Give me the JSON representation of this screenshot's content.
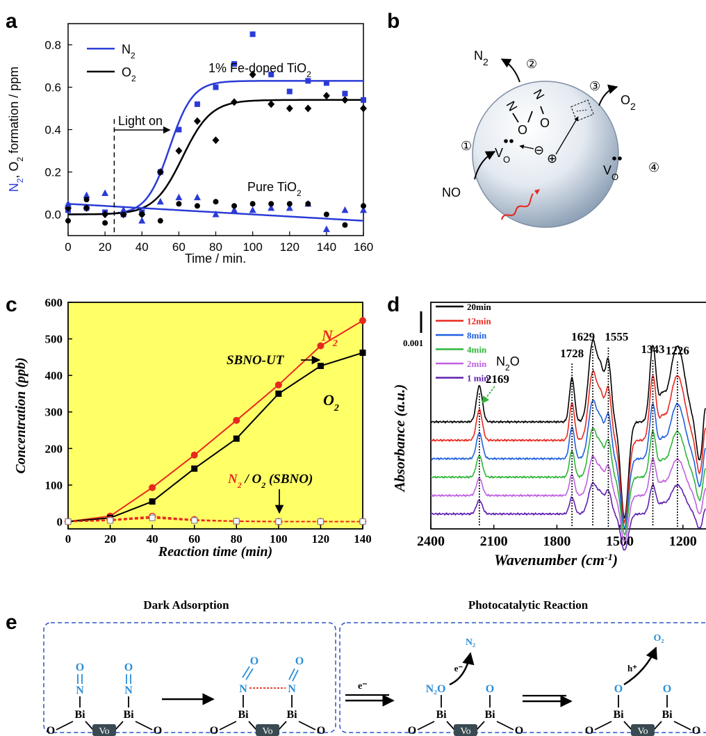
{
  "panels": {
    "a": {
      "label": "a"
    },
    "b": {
      "label": "b",
      "species": {
        "n2": "N",
        "n2_sub": "2",
        "o2": "O",
        "o2_sub": "2",
        "no": "NO",
        "n": "N",
        "o": "O",
        "vo": "V",
        "vo_sub": "O"
      },
      "steps": [
        "①",
        "②",
        "③",
        "④"
      ],
      "charges": {
        "minus": "⊖",
        "plus": "⊕"
      }
    },
    "c": {
      "label": "c"
    },
    "d": {
      "label": "d",
      "scale_bar": "0.001"
    },
    "e": {
      "label": "e",
      "titles": {
        "left": "Dark Adsorption",
        "right": "Photocatalytic Reaction"
      },
      "atoms": {
        "bi": "Bi",
        "o": "O",
        "n": "N",
        "vo": "Vo",
        "n2o": "N₂O",
        "n2": "N₂",
        "o2": "O₂",
        "e": "e⁻",
        "h": "h⁺"
      }
    }
  },
  "chart_data": [
    {
      "panel": "a",
      "type": "scatter",
      "xlabel": "Time / min.",
      "ylabel_parts": [
        "N",
        "2",
        ", O",
        "2",
        " formation / ppm"
      ],
      "xlim": [
        0,
        160
      ],
      "ylim": [
        -0.1,
        0.9
      ],
      "xticks": [
        0,
        20,
        40,
        60,
        80,
        100,
        120,
        140,
        160
      ],
      "yticks": [
        0.0,
        0.2,
        0.4,
        0.6,
        0.8
      ],
      "legend": {
        "placement": "top-left",
        "entries": [
          {
            "text": "N",
            "sub": "2",
            "color": "#2b3bd6"
          },
          {
            "text": "O",
            "sub": "2",
            "color": "#000000"
          }
        ]
      },
      "annotations": {
        "fe_label": "1% Fe-doped TiO",
        "fe_sub": "2",
        "pure_label": "Pure TiO",
        "pure_sub": "2",
        "light_on": "Light on",
        "light_on_x": 25
      },
      "fits": [
        {
          "series": "N2",
          "color": "#2b3bd6",
          "type": "sigmoid",
          "max": 0.63,
          "x0": 55,
          "k": 0.16
        },
        {
          "series": "O2",
          "color": "#000000",
          "type": "sigmoid",
          "max": 0.54,
          "x0": 62,
          "k": 0.13
        },
        {
          "series": "Pure TiO2",
          "color": "#2b3bd6",
          "type": "line",
          "start": 0.05,
          "end": -0.03
        }
      ],
      "series": [
        {
          "name": "Fe-TiO2 N2",
          "marker": "square",
          "color": "#2b3bd6",
          "x": [
            0,
            10,
            20,
            30,
            40,
            50,
            60,
            70,
            80,
            90,
            100,
            110,
            120,
            130,
            140,
            150,
            160
          ],
          "y": [
            0.02,
            0.03,
            0.01,
            0.0,
            0.01,
            0.2,
            0.4,
            0.52,
            0.6,
            0.71,
            0.85,
            0.66,
            0.58,
            0.63,
            0.62,
            0.57,
            0.54
          ]
        },
        {
          "name": "Fe-TiO2 O2",
          "marker": "diamond",
          "color": "#000000",
          "x": [
            0,
            10,
            20,
            30,
            40,
            50,
            60,
            70,
            80,
            90,
            100,
            110,
            120,
            130,
            140,
            150,
            160
          ],
          "y": [
            0.03,
            0.03,
            0.0,
            0.0,
            0.0,
            0.2,
            0.3,
            0.44,
            0.35,
            0.53,
            0.66,
            0.52,
            0.5,
            0.5,
            0.56,
            0.54,
            0.5
          ]
        },
        {
          "name": "Pure TiO2 N2",
          "marker": "triangle",
          "color": "#2b3bd6",
          "x": [
            0,
            10,
            20,
            30,
            40,
            50,
            60,
            70,
            80,
            90,
            100,
            110,
            120,
            130,
            140,
            150,
            160
          ],
          "y": [
            0.05,
            0.09,
            0.1,
            0.02,
            -0.03,
            0.06,
            0.08,
            0.08,
            0.0,
            0.02,
            0.02,
            0.03,
            0.03,
            0.05,
            -0.07,
            0.02,
            0.02
          ]
        },
        {
          "name": "Pure TiO2 O2",
          "marker": "circle",
          "color": "#000000",
          "x": [
            0,
            10,
            20,
            30,
            40,
            50,
            60,
            70,
            80,
            90,
            100,
            110,
            120,
            130,
            140,
            150,
            160
          ],
          "y": [
            -0.03,
            0.07,
            -0.04,
            0.0,
            0.0,
            -0.03,
            0.05,
            0.04,
            0.06,
            0.04,
            0.05,
            0.05,
            0.05,
            0.05,
            0.0,
            -0.05,
            0.04
          ]
        }
      ]
    },
    {
      "panel": "c",
      "type": "line",
      "background": "#ffff66",
      "xlabel": "Reaction time (min)",
      "ylabel": "Concentration (ppb)",
      "xlim": [
        0,
        140
      ],
      "ylim": [
        -20,
        600
      ],
      "xticks": [
        0,
        20,
        40,
        60,
        80,
        100,
        120,
        140
      ],
      "yticks": [
        0,
        100,
        200,
        300,
        400,
        500,
        600
      ],
      "x": [
        0,
        20,
        40,
        60,
        80,
        100,
        120,
        140
      ],
      "labels": {
        "n2": "N",
        "o2": "O",
        "sub": "2",
        "sbno_ut": "SBNO-UT",
        "sbno_mid": " / O",
        "sbno_tail": " (SBNO)"
      },
      "series": [
        {
          "name": "N2",
          "color": "#e8281e",
          "marker": "circle",
          "values": [
            0,
            15,
            93,
            182,
            277,
            374,
            481,
            550
          ]
        },
        {
          "name": "O2",
          "color": "#000000",
          "marker": "square",
          "values": [
            0,
            10,
            55,
            145,
            227,
            350,
            426,
            462
          ]
        },
        {
          "name": "N2 SBNO",
          "color": "#e8281e",
          "marker": "open-circle",
          "dashed": true,
          "values": [
            0,
            5,
            14,
            5,
            1,
            0,
            0,
            0
          ]
        },
        {
          "name": "O2 SBNO",
          "color": "#e8281e",
          "marker": "open-square",
          "dashed": true,
          "values": [
            0,
            3,
            10,
            3,
            1,
            0,
            0,
            0
          ]
        }
      ]
    },
    {
      "panel": "d",
      "type": "line",
      "xlabel": "Wavenumber (cm",
      "xlabel_sup": "-1",
      "xlabel_close": ")",
      "ylabel": "Absorbance (a.u.)",
      "xlim": [
        2400,
        1090
      ],
      "xticks": [
        2400,
        2100,
        1800,
        1500,
        1200
      ],
      "peaks": [
        2169,
        1728,
        1629,
        1555,
        1343,
        1226
      ],
      "peak_labels": [
        "2169",
        "1728",
        "1629",
        "1555",
        "1343",
        "1226"
      ],
      "n2o_label": "N",
      "n2o_sub": "2",
      "n2o_tail": "O",
      "legend": {
        "placement": "top-left"
      },
      "series": [
        {
          "name": "20min",
          "color": "#000000",
          "baseline": 0,
          "amp": 1.0
        },
        {
          "name": "12min",
          "color": "#e8281e",
          "baseline": 1,
          "amp": 0.85
        },
        {
          "name": "8min",
          "color": "#2060e0",
          "baseline": 2,
          "amp": 0.72
        },
        {
          "name": "4min",
          "color": "#2fb53a",
          "baseline": 3,
          "amp": 0.6
        },
        {
          "name": "2min",
          "color": "#c060e0",
          "baseline": 4,
          "amp": 0.48
        },
        {
          "name": "1 min",
          "color": "#6020b0",
          "baseline": 5,
          "amp": 0.38
        }
      ]
    }
  ]
}
